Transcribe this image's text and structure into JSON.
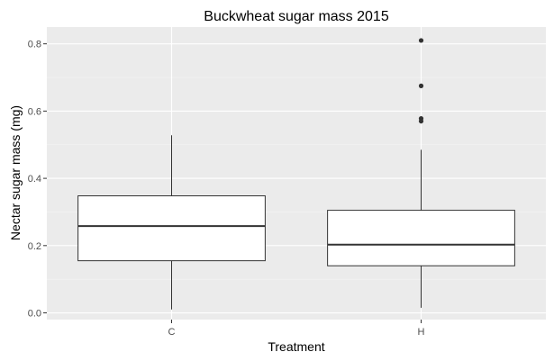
{
  "chart_data": {
    "type": "boxplot",
    "title": "Buckwheat sugar mass 2015",
    "xlabel": "Treatment",
    "ylabel": "Nectar sugar mass (mg)",
    "categories": [
      "C",
      "H"
    ],
    "ylim": [
      -0.02,
      0.85
    ],
    "yticks": [
      0.0,
      0.2,
      0.4,
      0.6,
      0.8
    ],
    "ytick_labels": [
      "0.0",
      "0.2",
      "0.4",
      "0.6",
      "0.8"
    ],
    "grid": true,
    "boxes": [
      {
        "category": "C",
        "whisker_low": 0.01,
        "q1": 0.155,
        "median": 0.258,
        "q3": 0.348,
        "whisker_high": 0.528,
        "outliers": []
      },
      {
        "category": "H",
        "whisker_low": 0.015,
        "q1": 0.14,
        "median": 0.203,
        "q3": 0.305,
        "whisker_high": 0.485,
        "outliers": [
          0.57,
          0.578,
          0.675,
          0.81
        ]
      }
    ],
    "colors": {
      "panel_background": "#ebebeb",
      "grid_major": "#ffffff",
      "grid_minor": "#f5f5f5",
      "box_fill": "#ffffff",
      "box_line": "#333333",
      "outlier": "#333333"
    }
  }
}
